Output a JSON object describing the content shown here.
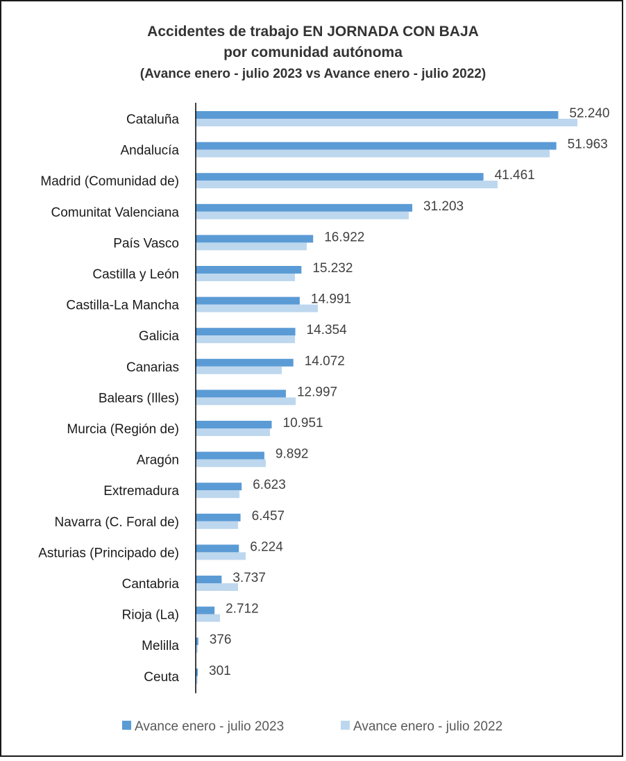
{
  "chart_data": {
    "type": "bar",
    "orientation": "horizontal",
    "title": "Accidentes de trabajo EN JORNADA CON BAJA",
    "subtitle": "por comunidad autónoma",
    "subtitle2": "(Avance enero - julio 2023 vs Avance enero - julio 2022)",
    "categories": [
      "Cataluña",
      "Andalucía",
      "Madrid (Comunidad de)",
      "Comunitat Valenciana",
      "País Vasco",
      "Castilla y León",
      "Castilla-La Mancha",
      "Galicia",
      "Canarias",
      "Balears (Illes)",
      "Murcia (Región de)",
      "Aragón",
      "Extremadura",
      "Navarra (C. Foral de)",
      "Asturias (Principado de)",
      "Cantabria",
      "Rioja (La)",
      "Melilla",
      "Ceuta"
    ],
    "series": [
      {
        "name": "Avance enero - julio 2023",
        "color": "#5b9bd5",
        "values": [
          52240,
          51963,
          41461,
          31203,
          16922,
          15232,
          14991,
          14354,
          14072,
          12997,
          10951,
          9892,
          6623,
          6457,
          6224,
          3737,
          2712,
          376,
          301
        ],
        "labels": [
          "52.240",
          "51.963",
          "41.461",
          "31.203",
          "16.922",
          "15.232",
          "14.991",
          "14.354",
          "14.072",
          "12.997",
          "10.951",
          "9.892",
          "6.623",
          "6.457",
          "6.224",
          "3.737",
          "2.712",
          "376",
          "301"
        ]
      },
      {
        "name": "Avance enero - julio 2022",
        "color": "#bdd7ee",
        "values": [
          55000,
          51000,
          43500,
          30700,
          16000,
          14300,
          17600,
          14300,
          12400,
          14400,
          10700,
          10100,
          6300,
          6100,
          7200,
          6100,
          3500,
          300,
          280
        ]
      }
    ],
    "legend_position": "bottom",
    "grid": false,
    "xlim": [
      0,
      55000
    ]
  }
}
